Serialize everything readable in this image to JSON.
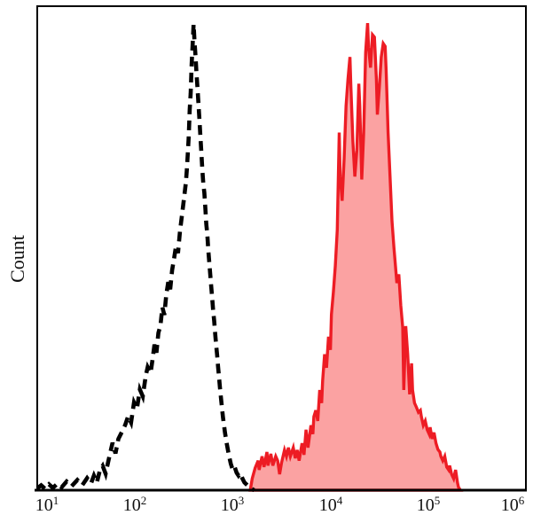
{
  "colors": {
    "background": "#ffffff",
    "axis": "#000000",
    "dashed_series": "#000000",
    "red_series_stroke": "#ED1C24",
    "red_series_fill": "rgba(244,10,10,0.38)"
  },
  "chart_data": {
    "type": "area",
    "subtype": "flow-cytometry-histogram-overlay",
    "title": "",
    "xlabel": "",
    "ylabel": "Count",
    "grid": false,
    "legend": "none",
    "x_axis": {
      "scale": "log10",
      "min": 10,
      "max": 1000000,
      "tick_labels": [
        {
          "base": "10",
          "exp": "1"
        },
        {
          "base": "10",
          "exp": "2"
        },
        {
          "base": "10",
          "exp": "3"
        },
        {
          "base": "10",
          "exp": "4"
        },
        {
          "base": "10",
          "exp": "5"
        },
        {
          "base": "10",
          "exp": "6"
        }
      ]
    },
    "y_axis": {
      "label": "Count",
      "tick_labels_shown": false,
      "range_percent": [
        0,
        100
      ]
    },
    "series": [
      {
        "name": "dashed-black-histogram",
        "style": "dashed",
        "color": "#000000",
        "fill": "none",
        "peak_x_log10": 2.6,
        "peak_height_pct": 96.3,
        "points": [
          [
            1.0,
            0.4
          ],
          [
            1.04,
            1.0
          ],
          [
            1.08,
            0.3
          ],
          [
            1.12,
            1.2
          ],
          [
            1.16,
            0.5
          ],
          [
            1.21,
            1.4
          ],
          [
            1.25,
            0.6
          ],
          [
            1.3,
            1.8
          ],
          [
            1.35,
            0.8
          ],
          [
            1.41,
            2.1
          ],
          [
            1.46,
            1.0
          ],
          [
            1.51,
            2.5
          ],
          [
            1.55,
            1.4
          ],
          [
            1.58,
            3.0
          ],
          [
            1.61,
            1.6
          ],
          [
            1.64,
            4.0
          ],
          [
            1.67,
            5.0
          ],
          [
            1.7,
            3.4
          ],
          [
            1.73,
            6.2
          ],
          [
            1.77,
            9.8
          ],
          [
            1.8,
            7.6
          ],
          [
            1.83,
            10.6
          ],
          [
            1.87,
            12.2
          ],
          [
            1.9,
            13.5
          ],
          [
            1.93,
            15.3
          ],
          [
            1.96,
            14.0
          ],
          [
            1.99,
            18.1
          ],
          [
            2.02,
            16.8
          ],
          [
            2.05,
            20.8
          ],
          [
            2.08,
            19.4
          ],
          [
            2.11,
            23.6
          ],
          [
            2.13,
            25.4
          ],
          [
            2.16,
            24.2
          ],
          [
            2.18,
            27.0
          ],
          [
            2.2,
            30.1
          ],
          [
            2.22,
            28.4
          ],
          [
            2.24,
            32.5
          ],
          [
            2.26,
            34.0
          ],
          [
            2.28,
            37.8
          ],
          [
            2.3,
            36.2
          ],
          [
            2.32,
            40.4
          ],
          [
            2.34,
            43.0
          ],
          [
            2.36,
            41.5
          ],
          [
            2.38,
            45.5
          ],
          [
            2.4,
            47.9
          ],
          [
            2.42,
            50.5
          ],
          [
            2.44,
            49.0
          ],
          [
            2.46,
            53.4
          ],
          [
            2.48,
            56.7
          ],
          [
            2.5,
            60.0
          ],
          [
            2.52,
            63.4
          ],
          [
            2.53,
            66.0
          ],
          [
            2.54,
            69.4
          ],
          [
            2.55,
            73.0
          ],
          [
            2.56,
            78.6
          ],
          [
            2.57,
            82.0
          ],
          [
            2.58,
            88.0
          ],
          [
            2.59,
            92.0
          ],
          [
            2.6,
            96.3
          ],
          [
            2.61,
            92.5
          ],
          [
            2.62,
            89.6
          ],
          [
            2.63,
            86.0
          ],
          [
            2.64,
            83.1
          ],
          [
            2.65,
            79.8
          ],
          [
            2.66,
            76.5
          ],
          [
            2.67,
            73.0
          ],
          [
            2.68,
            69.6
          ],
          [
            2.69,
            66.0
          ],
          [
            2.7,
            63.2
          ],
          [
            2.71,
            61.5
          ],
          [
            2.72,
            58.4
          ],
          [
            2.73,
            55.0
          ],
          [
            2.74,
            53.0
          ],
          [
            2.75,
            49.8
          ],
          [
            2.76,
            47.0
          ],
          [
            2.77,
            44.5
          ],
          [
            2.78,
            42.0
          ],
          [
            2.79,
            39.6
          ],
          [
            2.8,
            37.0
          ],
          [
            2.81,
            35.0
          ],
          [
            2.82,
            32.4
          ],
          [
            2.83,
            30.0
          ],
          [
            2.84,
            28.0
          ],
          [
            2.85,
            25.5
          ],
          [
            2.86,
            23.3
          ],
          [
            2.87,
            21.0
          ],
          [
            2.88,
            19.0
          ],
          [
            2.89,
            17.0
          ],
          [
            2.9,
            15.1
          ],
          [
            2.92,
            12.0
          ],
          [
            2.94,
            9.5
          ],
          [
            2.96,
            7.3
          ],
          [
            2.98,
            5.5
          ],
          [
            3.0,
            4.2
          ],
          [
            3.02,
            4.8
          ],
          [
            3.04,
            3.6
          ],
          [
            3.06,
            3.0
          ],
          [
            3.08,
            3.5
          ],
          [
            3.1,
            2.4
          ],
          [
            3.12,
            1.6
          ],
          [
            3.15,
            1.0
          ],
          [
            3.19,
            0.3
          ],
          [
            3.22,
            0.0
          ]
        ]
      },
      {
        "name": "red-filled-histogram",
        "style": "solid",
        "color": "#ED1C24",
        "fill": "rgba(244,10,10,0.38)",
        "peak_x_log10": 4.38,
        "peak_height_pct": 96.5,
        "points": [
          [
            3.18,
            0.0
          ],
          [
            3.2,
            2.4
          ],
          [
            3.23,
            4.6
          ],
          [
            3.26,
            6.1
          ],
          [
            3.27,
            4.2
          ],
          [
            3.3,
            7.0
          ],
          [
            3.32,
            4.8
          ],
          [
            3.35,
            7.9
          ],
          [
            3.36,
            5.1
          ],
          [
            3.39,
            7.5
          ],
          [
            3.41,
            5.1
          ],
          [
            3.44,
            7.0
          ],
          [
            3.46,
            6.1
          ],
          [
            3.48,
            3.3
          ],
          [
            3.5,
            5.7
          ],
          [
            3.53,
            8.3
          ],
          [
            3.55,
            7.0
          ],
          [
            3.57,
            8.8
          ],
          [
            3.59,
            7.0
          ],
          [
            3.62,
            8.8
          ],
          [
            3.64,
            6.6
          ],
          [
            3.66,
            8.3
          ],
          [
            3.68,
            6.1
          ],
          [
            3.71,
            9.7
          ],
          [
            3.73,
            7.3
          ],
          [
            3.75,
            12.5
          ],
          [
            3.77,
            8.8
          ],
          [
            3.8,
            13.4
          ],
          [
            3.82,
            11.6
          ],
          [
            3.83,
            15.2
          ],
          [
            3.85,
            16.5
          ],
          [
            3.87,
            14.3
          ],
          [
            3.89,
            20.7
          ],
          [
            3.91,
            18.0
          ],
          [
            3.92,
            22.6
          ],
          [
            3.94,
            28.1
          ],
          [
            3.96,
            25.3
          ],
          [
            3.98,
            31.7
          ],
          [
            4.0,
            29.0
          ],
          [
            4.01,
            36.3
          ],
          [
            4.03,
            40.9
          ],
          [
            4.05,
            46.4
          ],
          [
            4.07,
            53.8
          ],
          [
            4.09,
            73.9
          ],
          [
            4.1,
            64.8
          ],
          [
            4.12,
            59.8
          ],
          [
            4.14,
            68.4
          ],
          [
            4.16,
            79.4
          ],
          [
            4.18,
            85.0
          ],
          [
            4.2,
            89.5
          ],
          [
            4.21,
            83.1
          ],
          [
            4.23,
            72.1
          ],
          [
            4.25,
            64.8
          ],
          [
            4.27,
            70.3
          ],
          [
            4.29,
            84.0
          ],
          [
            4.3,
            79.4
          ],
          [
            4.32,
            64.2
          ],
          [
            4.34,
            73.9
          ],
          [
            4.36,
            90.5
          ],
          [
            4.38,
            96.5
          ],
          [
            4.39,
            91.4
          ],
          [
            4.41,
            87.3
          ],
          [
            4.43,
            94.1
          ],
          [
            4.45,
            93.6
          ],
          [
            4.47,
            85.0
          ],
          [
            4.48,
            77.6
          ],
          [
            4.5,
            83.1
          ],
          [
            4.52,
            89.5
          ],
          [
            4.54,
            92.3
          ],
          [
            4.56,
            91.7
          ],
          [
            4.57,
            86.8
          ],
          [
            4.59,
            73.9
          ],
          [
            4.61,
            64.8
          ],
          [
            4.63,
            55.6
          ],
          [
            4.65,
            50.1
          ],
          [
            4.66,
            47.7
          ],
          [
            4.68,
            42.8
          ],
          [
            4.7,
            44.6
          ],
          [
            4.72,
            38.2
          ],
          [
            4.74,
            33.6
          ],
          [
            4.75,
            20.7
          ],
          [
            4.77,
            33.9
          ],
          [
            4.79,
            28.1
          ],
          [
            4.81,
            19.8
          ],
          [
            4.83,
            26.2
          ],
          [
            4.84,
            20.7
          ],
          [
            4.86,
            18.0
          ],
          [
            4.88,
            17.1
          ],
          [
            4.9,
            16.1
          ],
          [
            4.92,
            16.5
          ],
          [
            4.93,
            15.2
          ],
          [
            4.95,
            13.4
          ],
          [
            4.97,
            14.3
          ],
          [
            4.99,
            12.5
          ],
          [
            5.01,
            11.6
          ],
          [
            5.02,
            13.0
          ],
          [
            5.04,
            10.6
          ],
          [
            5.06,
            11.9
          ],
          [
            5.08,
            9.7
          ],
          [
            5.1,
            8.4
          ],
          [
            5.12,
            7.9
          ],
          [
            5.13,
            7.0
          ],
          [
            5.15,
            6.1
          ],
          [
            5.17,
            7.0
          ],
          [
            5.19,
            4.8
          ],
          [
            5.21,
            4.2
          ],
          [
            5.22,
            5.1
          ],
          [
            5.24,
            3.3
          ],
          [
            5.26,
            2.4
          ],
          [
            5.28,
            4.2
          ],
          [
            5.3,
            1.5
          ],
          [
            5.31,
            0.6
          ],
          [
            5.33,
            0.0
          ]
        ]
      }
    ]
  }
}
